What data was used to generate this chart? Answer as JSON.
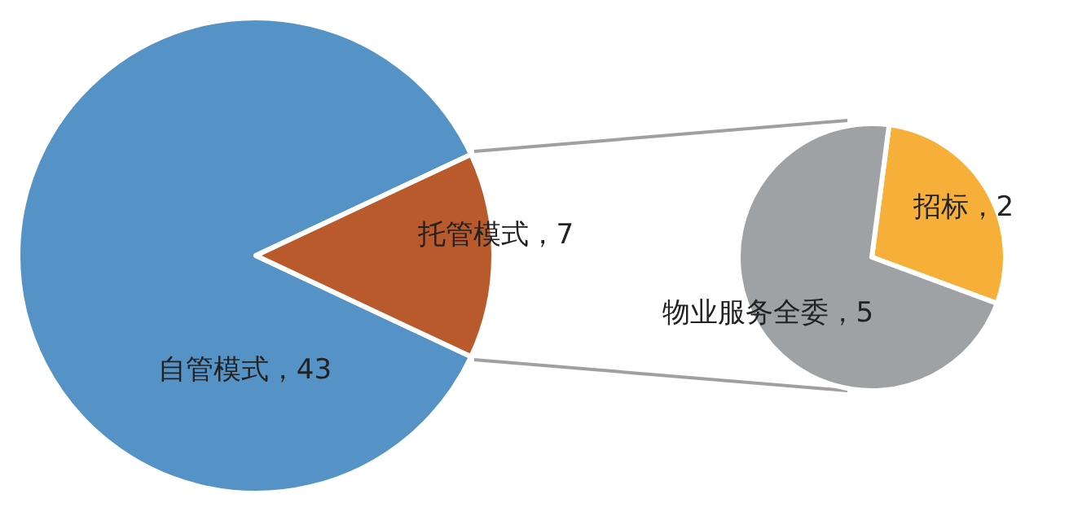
{
  "chart_data": [
    {
      "type": "pie",
      "categories": [
        "自管模式",
        "托管模式"
      ],
      "values": [
        43,
        7
      ],
      "colors": [
        "#5592c6",
        "#b85a2c"
      ],
      "value_labels": [
        "，43",
        "，7"
      ]
    },
    {
      "type": "pie",
      "categories": [
        "招标",
        "物业服务全委"
      ],
      "values": [
        2,
        5
      ],
      "colors": [
        "#f6b03a",
        "#9ea2a5"
      ],
      "value_labels": [
        "，2",
        "，5"
      ]
    }
  ]
}
